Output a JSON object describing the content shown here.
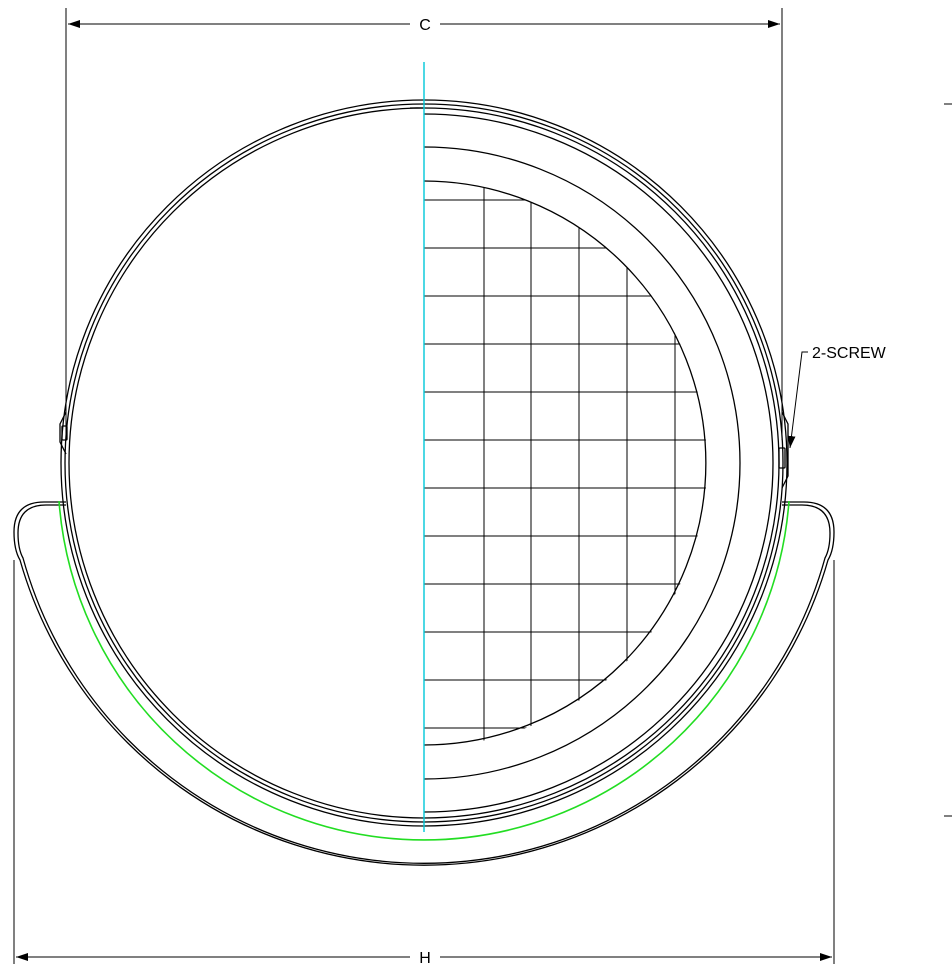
{
  "drawing": {
    "dimension_c_label": "C",
    "dimension_h_label": "H",
    "screw_callout": "2-SCREW"
  },
  "colors": {
    "line": "#000000",
    "centerline": "#00c8d8",
    "hidden_arc": "#22dd22",
    "background": "#ffffff"
  }
}
